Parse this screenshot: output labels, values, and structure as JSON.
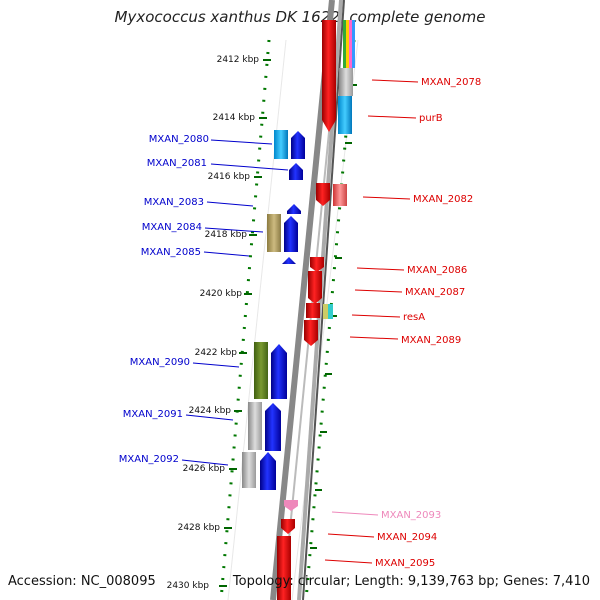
{
  "title": "Myxococcus xanthus DK 1622, complete genome",
  "footer": {
    "accession": "Accession: NC_008095",
    "summary": "Topology: circular; Length: 9,139,763 bp; Genes: 7,410"
  },
  "scale_labels": [
    "2412 kbp",
    "2414 kbp",
    "2416 kbp",
    "2418 kbp",
    "2420 kbp",
    "2422 kbp",
    "2424 kbp",
    "2426 kbp",
    "2428 kbp",
    "2430 kbp"
  ],
  "left_genes": [
    {
      "name": "MXAN_2080",
      "color": "#0000cc"
    },
    {
      "name": "MXAN_2081",
      "color": "#0000cc"
    },
    {
      "name": "MXAN_2083",
      "color": "#0000cc"
    },
    {
      "name": "MXAN_2084",
      "color": "#0000cc"
    },
    {
      "name": "MXAN_2085",
      "color": "#0000cc"
    },
    {
      "name": "MXAN_2090",
      "color": "#0000cc"
    },
    {
      "name": "MXAN_2091",
      "color": "#0000cc"
    },
    {
      "name": "MXAN_2092",
      "color": "#0000cc"
    }
  ],
  "right_genes": [
    {
      "name": "MXAN_2078",
      "color": "#dd0000"
    },
    {
      "name": "purB",
      "color": "#dd0000"
    },
    {
      "name": "MXAN_2082",
      "color": "#dd0000"
    },
    {
      "name": "MXAN_2086",
      "color": "#dd0000"
    },
    {
      "name": "MXAN_2087",
      "color": "#dd0000"
    },
    {
      "name": "resA",
      "color": "#dd0000"
    },
    {
      "name": "MXAN_2089",
      "color": "#dd0000"
    },
    {
      "name": "MXAN_2093",
      "color": "#ee88bb"
    },
    {
      "name": "MXAN_2094",
      "color": "#dd0000"
    },
    {
      "name": "MXAN_2095",
      "color": "#dd0000"
    }
  ]
}
